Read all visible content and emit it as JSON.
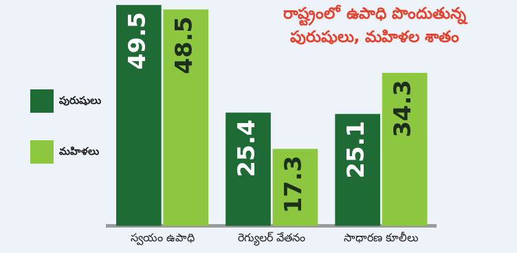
{
  "chart_data": {
    "type": "bar",
    "title": "రాష్ట్రంలో ఉపాధి పొందుతున్న\nపురుషులు, మహిళల శాతం",
    "categories": [
      "స్వయం ఉపాధి",
      "రెగ్యులర్ వేతనం",
      "సాధారణ కూలీలు"
    ],
    "series": [
      {
        "name": "పురుషులు",
        "color": "#1f6b35",
        "values": [
          49.5,
          25.4,
          25.1
        ]
      },
      {
        "name": "మహిళలు",
        "color": "#8dc63f",
        "values": [
          48.5,
          17.3,
          34.3
        ]
      }
    ],
    "ylim": [
      0,
      50
    ],
    "grid": false,
    "legend": "left",
    "data_labels": true,
    "tick_labels": "x"
  }
}
